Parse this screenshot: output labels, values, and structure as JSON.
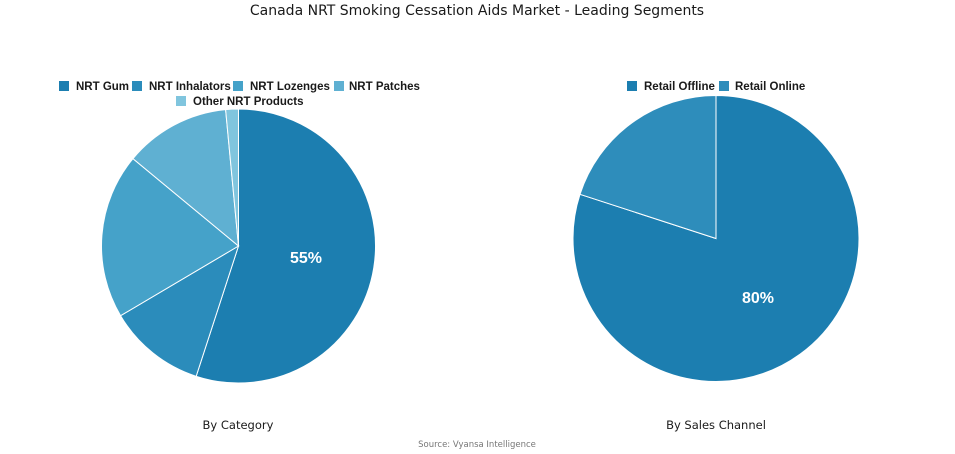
{
  "title": "Canada NRT Smoking Cessation Aids Market - Leading Segments",
  "source": "Source: Vyansa Intelligence",
  "chart_data": [
    {
      "type": "pie",
      "title": "By Category",
      "categories": [
        "NRT Gum",
        "NRT Inhalators",
        "NRT Lozenges",
        "NRT Patches",
        "Other NRT Products"
      ],
      "values": [
        55,
        11.5,
        19.5,
        12.5,
        1.5
      ],
      "colors": [
        "#1c7eb0",
        "#2b8cbb",
        "#45a2c9",
        "#5fb0d2",
        "#80c5de"
      ],
      "data_labels": [
        "55%",
        "",
        "",
        "",
        ""
      ],
      "legend_position": "top",
      "start_angle": "12 o'clock, clockwise"
    },
    {
      "type": "pie",
      "title": "By Sales Channel",
      "categories": [
        "Retail Offline",
        "Retail Online"
      ],
      "values": [
        80,
        20
      ],
      "colors": [
        "#1c7eb0",
        "#2e8dbb"
      ],
      "data_labels": [
        "80%",
        ""
      ],
      "legend_position": "top",
      "start_angle": "12 o'clock, clockwise"
    }
  ],
  "legend_left": {
    "items": [
      {
        "label": "NRT Gum"
      },
      {
        "label": "NRT Inhalators"
      },
      {
        "label": "NRT Lozenges"
      },
      {
        "label": "NRT Patches"
      },
      {
        "label": "Other NRT Products"
      }
    ]
  },
  "legend_right": {
    "items": [
      {
        "label": "Retail Offline"
      },
      {
        "label": "Retail Online"
      }
    ]
  },
  "labels": {
    "left_pie_value": "55%",
    "right_pie_value": "80%",
    "left_caption": "By Category",
    "right_caption": "By Sales Channel"
  }
}
